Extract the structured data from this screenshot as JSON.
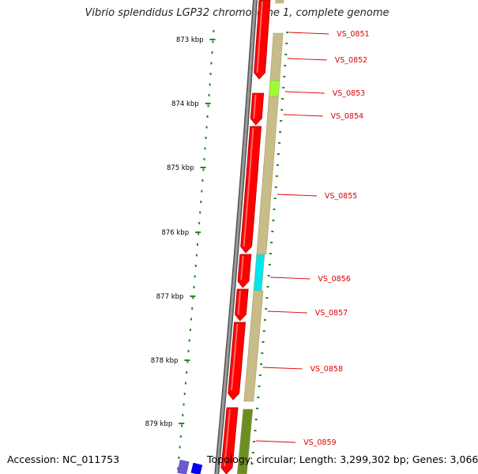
{
  "title": "Vibrio splendidus LGP32 chromosome 1, complete genome",
  "footer": {
    "accession": "Accession: NC_011753",
    "topology": "Topology: circular; Length: 3,299,302 bp; Genes: 3,066"
  },
  "ruler": {
    "unit": "kbp",
    "ticks": [
      {
        "label": "873 kbp",
        "value": 873
      },
      {
        "label": "874 kbp",
        "value": 874
      },
      {
        "label": "875 kbp",
        "value": 875
      },
      {
        "label": "876 kbp",
        "value": 876
      },
      {
        "label": "877 kbp",
        "value": 877
      },
      {
        "label": "878 kbp",
        "value": 878
      },
      {
        "label": "879 kbp",
        "value": 879
      }
    ]
  },
  "genes": [
    {
      "locus": "VS_0851",
      "color": "#ff0000"
    },
    {
      "locus": "VS_0852",
      "color": "#ff0000"
    },
    {
      "locus": "VS_0853",
      "color": "#ff0000"
    },
    {
      "locus": "VS_0854",
      "color": "#ff0000"
    },
    {
      "locus": "VS_0855",
      "color": "#ff0000"
    },
    {
      "locus": "VS_0856",
      "color": "#ff0000"
    },
    {
      "locus": "VS_0857",
      "color": "#ff0000"
    },
    {
      "locus": "VS_0858",
      "color": "#ff0000"
    },
    {
      "locus": "VS_0859",
      "color": "#ff0000"
    }
  ],
  "colors": {
    "backbone": "#7a7a7a",
    "gene": "#ff0000",
    "cog_track": "#c8bc88",
    "cog_track_dark": "#6b8e23",
    "cog_green": "#99ff33",
    "cog_cyan": "#00e5ee",
    "label": "#e00000",
    "tick": "#228b22",
    "blue_block": "#0000ee",
    "purple_block": "#6a5acd"
  }
}
